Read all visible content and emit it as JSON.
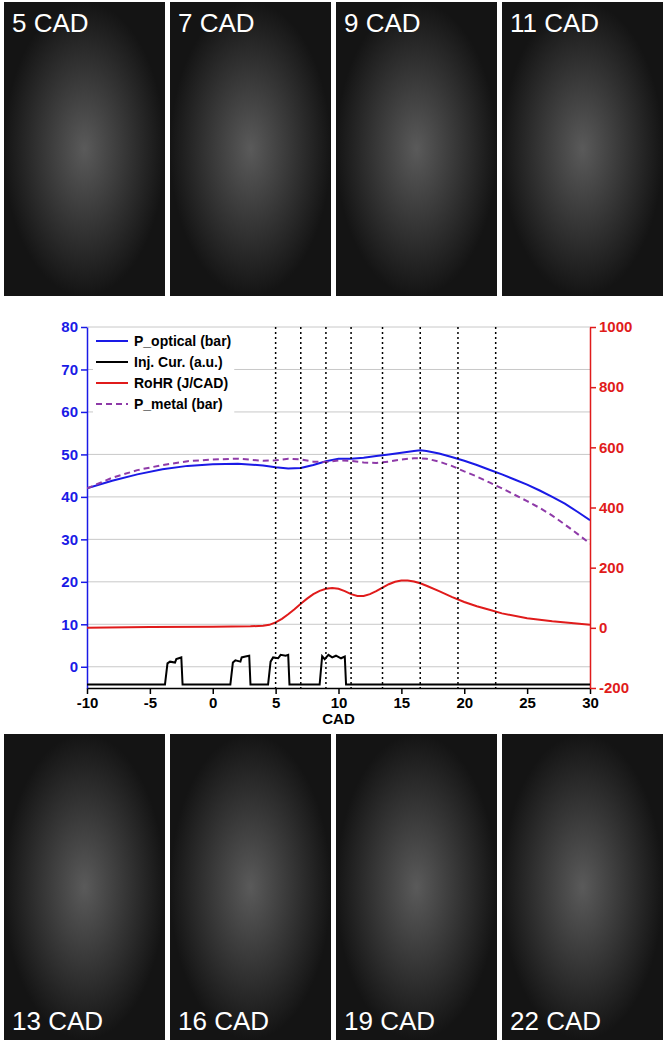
{
  "chart_data": {
    "type": "line",
    "x_label": "CAD",
    "xlim": [
      -10,
      30
    ],
    "xticks": [
      -10,
      -5,
      0,
      5,
      10,
      15,
      20,
      25,
      30
    ],
    "ylim": [
      -5,
      80
    ],
    "yticks": [
      0,
      10,
      20,
      30,
      40,
      50,
      60,
      70,
      80
    ],
    "y2lim": [
      -200,
      1000
    ],
    "y2ticks": [
      -200,
      0,
      200,
      400,
      600,
      800,
      1000
    ],
    "grid": true,
    "legend": "upper left",
    "series": [
      {
        "name": "P_optical (bar)",
        "color": "#1a1ae6",
        "line_style": "solid",
        "x": [
          -10,
          -8,
          -6,
          -4,
          -2,
          0,
          2,
          4,
          5,
          6,
          7,
          8,
          9,
          10,
          11,
          12,
          13,
          14,
          15,
          16,
          16.5,
          17,
          18,
          19,
          20,
          21,
          22,
          23,
          24,
          25,
          26,
          27,
          28,
          29,
          30
        ],
        "values": [
          42,
          43.8,
          45.3,
          46.5,
          47.3,
          47.7,
          47.8,
          47.4,
          47,
          46.7,
          46.8,
          47.5,
          48.4,
          49,
          49,
          49.2,
          49.6,
          50,
          50.4,
          50.8,
          51,
          50.8,
          50.2,
          49.4,
          48.5,
          47.5,
          46.4,
          45.3,
          44.1,
          42.9,
          41.5,
          40,
          38.4,
          36.5,
          34.5
        ]
      },
      {
        "name": "Inj. Cur. (a.u.)",
        "color": "#000000",
        "line_style": "solid",
        "x": [
          -10,
          -3.8,
          -3.6,
          -3.4,
          -3.0,
          -2.9,
          -2.7,
          -2.5,
          -2.4,
          1.4,
          1.6,
          1.8,
          2.2,
          2.3,
          2.6,
          2.9,
          3.0,
          4.4,
          4.6,
          4.8,
          5.2,
          5.4,
          5.8,
          6.0,
          6.1,
          8.5,
          8.7,
          8.9,
          9.2,
          9.5,
          9.8,
          10.2,
          10.5,
          10.6,
          30
        ],
        "values": [
          -4.2,
          -4.2,
          0.8,
          1.2,
          1.0,
          1.8,
          2,
          2.2,
          -4.2,
          -4.2,
          1,
          1.5,
          1.2,
          2.2,
          2.4,
          2.6,
          -4.2,
          -4.2,
          1.2,
          2.2,
          2,
          2.8,
          2.6,
          2.8,
          -4.2,
          -4.2,
          2.5,
          1.8,
          2.8,
          2.2,
          2.6,
          2,
          2.4,
          -4.2,
          -4.2
        ]
      },
      {
        "name": "RoHR (J/CAD)",
        "color": "#e01b1b",
        "line_style": "solid",
        "axis": "y2",
        "x": [
          -10,
          -5,
          0,
          3,
          4,
          4.5,
          5,
          5.5,
          6,
          6.5,
          7,
          7.5,
          8,
          8.5,
          9,
          9.5,
          10,
          10.5,
          11,
          11.5,
          12,
          12.5,
          13,
          13.5,
          14,
          14.5,
          15,
          15.5,
          16,
          16.5,
          17,
          18,
          19,
          20,
          21,
          22,
          23,
          25,
          27,
          30
        ],
        "values": [
          0,
          3,
          4,
          5,
          7,
          10,
          18,
          30,
          45,
          62,
          80,
          97,
          112,
          123,
          130,
          132,
          130,
          122,
          112,
          106,
          106,
          112,
          122,
          134,
          145,
          153,
          157,
          157,
          154,
          148,
          140,
          122,
          103,
          86,
          72,
          60,
          48,
          32,
          22,
          10
        ]
      },
      {
        "name": "P_metal (bar)",
        "color": "#8e3aa8",
        "line_style": "dashed",
        "x": [
          -10,
          -8,
          -6,
          -4,
          -2,
          0,
          2,
          4,
          5,
          6,
          7,
          8,
          9,
          10,
          11,
          12,
          13,
          14,
          15,
          16,
          17,
          18,
          19,
          20,
          21,
          22,
          23,
          24,
          25,
          26,
          27,
          28,
          29,
          30
        ],
        "values": [
          42,
          44.5,
          46.3,
          47.5,
          48.4,
          48.8,
          49,
          48.5,
          48.6,
          49,
          48.8,
          48.3,
          48.2,
          48.6,
          48.5,
          48.1,
          48,
          48.3,
          48.8,
          49.1,
          49,
          48.3,
          47.3,
          46,
          44.8,
          43.4,
          42,
          40.5,
          39,
          37.4,
          35.6,
          33.5,
          31.3,
          29
        ]
      }
    ],
    "frames": [
      {
        "label": "5 CAD",
        "x": 5
      },
      {
        "label": "7 CAD",
        "x": 7
      },
      {
        "label": "9 CAD",
        "x": 9
      },
      {
        "label": "11 CAD",
        "x": 11
      },
      {
        "label": "13 CAD",
        "x": 13.5
      },
      {
        "label": "16 CAD",
        "x": 16.5
      },
      {
        "label": "19 CAD",
        "x": 19.5
      },
      {
        "label": "22 CAD",
        "x": 22.5
      }
    ]
  }
}
